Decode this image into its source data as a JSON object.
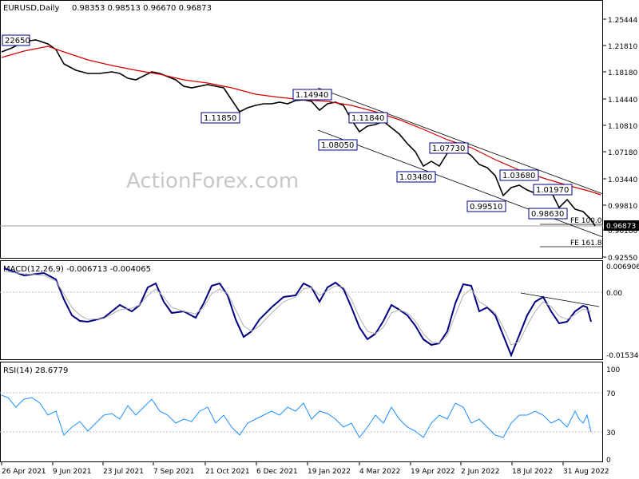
{
  "header": {
    "symbol": "EURUSD,Daily",
    "ohlc": "0.98353 0.98513 0.96670 0.96873"
  },
  "watermark": "ActionForex.com",
  "colors": {
    "price": "#000000",
    "sma": "#d40000",
    "channel": "#000000",
    "macd": "#000080",
    "signal": "#b0b0b0",
    "rsi": "#1e90ff",
    "label_border": "#000080",
    "current_bg": "#000000"
  },
  "price_axis": {
    "ticks": [
      "1.25444",
      "1.21810",
      "1.18180",
      "1.14440",
      "1.10810",
      "1.07180",
      "1.03440",
      "0.99810",
      "0.96180",
      "0.92550"
    ],
    "current": "0.96873"
  },
  "date_axis": [
    "26 Apr 2021",
    "9 Jun 2021",
    "23 Jul 2021",
    "7 Sep 2021",
    "21 Oct 2021",
    "6 Dec 2021",
    "19 Jan 2022",
    "4 Mar 2022",
    "19 Apr 2022",
    "2 Jun 2022",
    "18 Jul 2022",
    "31 Aug 2022"
  ],
  "price_labels": [
    "22650",
    "1.11850",
    "1.14940",
    "1.08050",
    "1.11840",
    "1.03480",
    "1.07730",
    "0.99510",
    "1.03680",
    "1.01970",
    "0.98630"
  ],
  "fe_labels": [
    "FE 100.0",
    "FE 161.8"
  ],
  "macd": {
    "label": "MACD(12,26,9) -0.006713 -0.004065",
    "ticks": [
      "0.006906",
      "0.00",
      "-0.015348"
    ]
  },
  "rsi": {
    "label": "RSI(14) 28.6779",
    "ticks": [
      "100",
      "70",
      "30",
      "0"
    ]
  },
  "chart_data": {
    "type": "line",
    "title": "EURUSD,Daily",
    "ylim": [
      0.925,
      1.27
    ],
    "x": [
      "26 Apr 2021",
      "9 Jun 2021",
      "23 Jul 2021",
      "7 Sep 2021",
      "21 Oct 2021",
      "6 Dec 2021",
      "19 Jan 2022",
      "4 Mar 2022",
      "19 Apr 2022",
      "2 Jun 2022",
      "18 Jul 2022",
      "31 Aug 2022"
    ],
    "series": [
      {
        "name": "close",
        "values": [
          1.205,
          1.225,
          1.18,
          1.183,
          1.16,
          1.131,
          1.135,
          1.105,
          1.065,
          1.078,
          1.015,
          0.985
        ]
      }
    ],
    "annotations": [
      "22650",
      "1.11850",
      "1.14940",
      "1.08050",
      "1.11840",
      "1.03480",
      "1.07730",
      "0.99510",
      "1.03680",
      "1.01970",
      "0.98630",
      "FE 100.0",
      "FE 161.8"
    ],
    "macd": {
      "name": "MACD(12,26,9)",
      "values": [
        0.002,
        -0.004,
        -0.003,
        0.0,
        -0.006,
        -0.004,
        0.001,
        -0.004,
        -0.008,
        0.0,
        -0.006,
        -0.004
      ]
    },
    "rsi": {
      "name": "RSI(14)",
      "values": [
        62,
        40,
        50,
        55,
        35,
        45,
        60,
        35,
        30,
        60,
        40,
        28.68
      ],
      "ylim": [
        0,
        100
      ]
    }
  }
}
